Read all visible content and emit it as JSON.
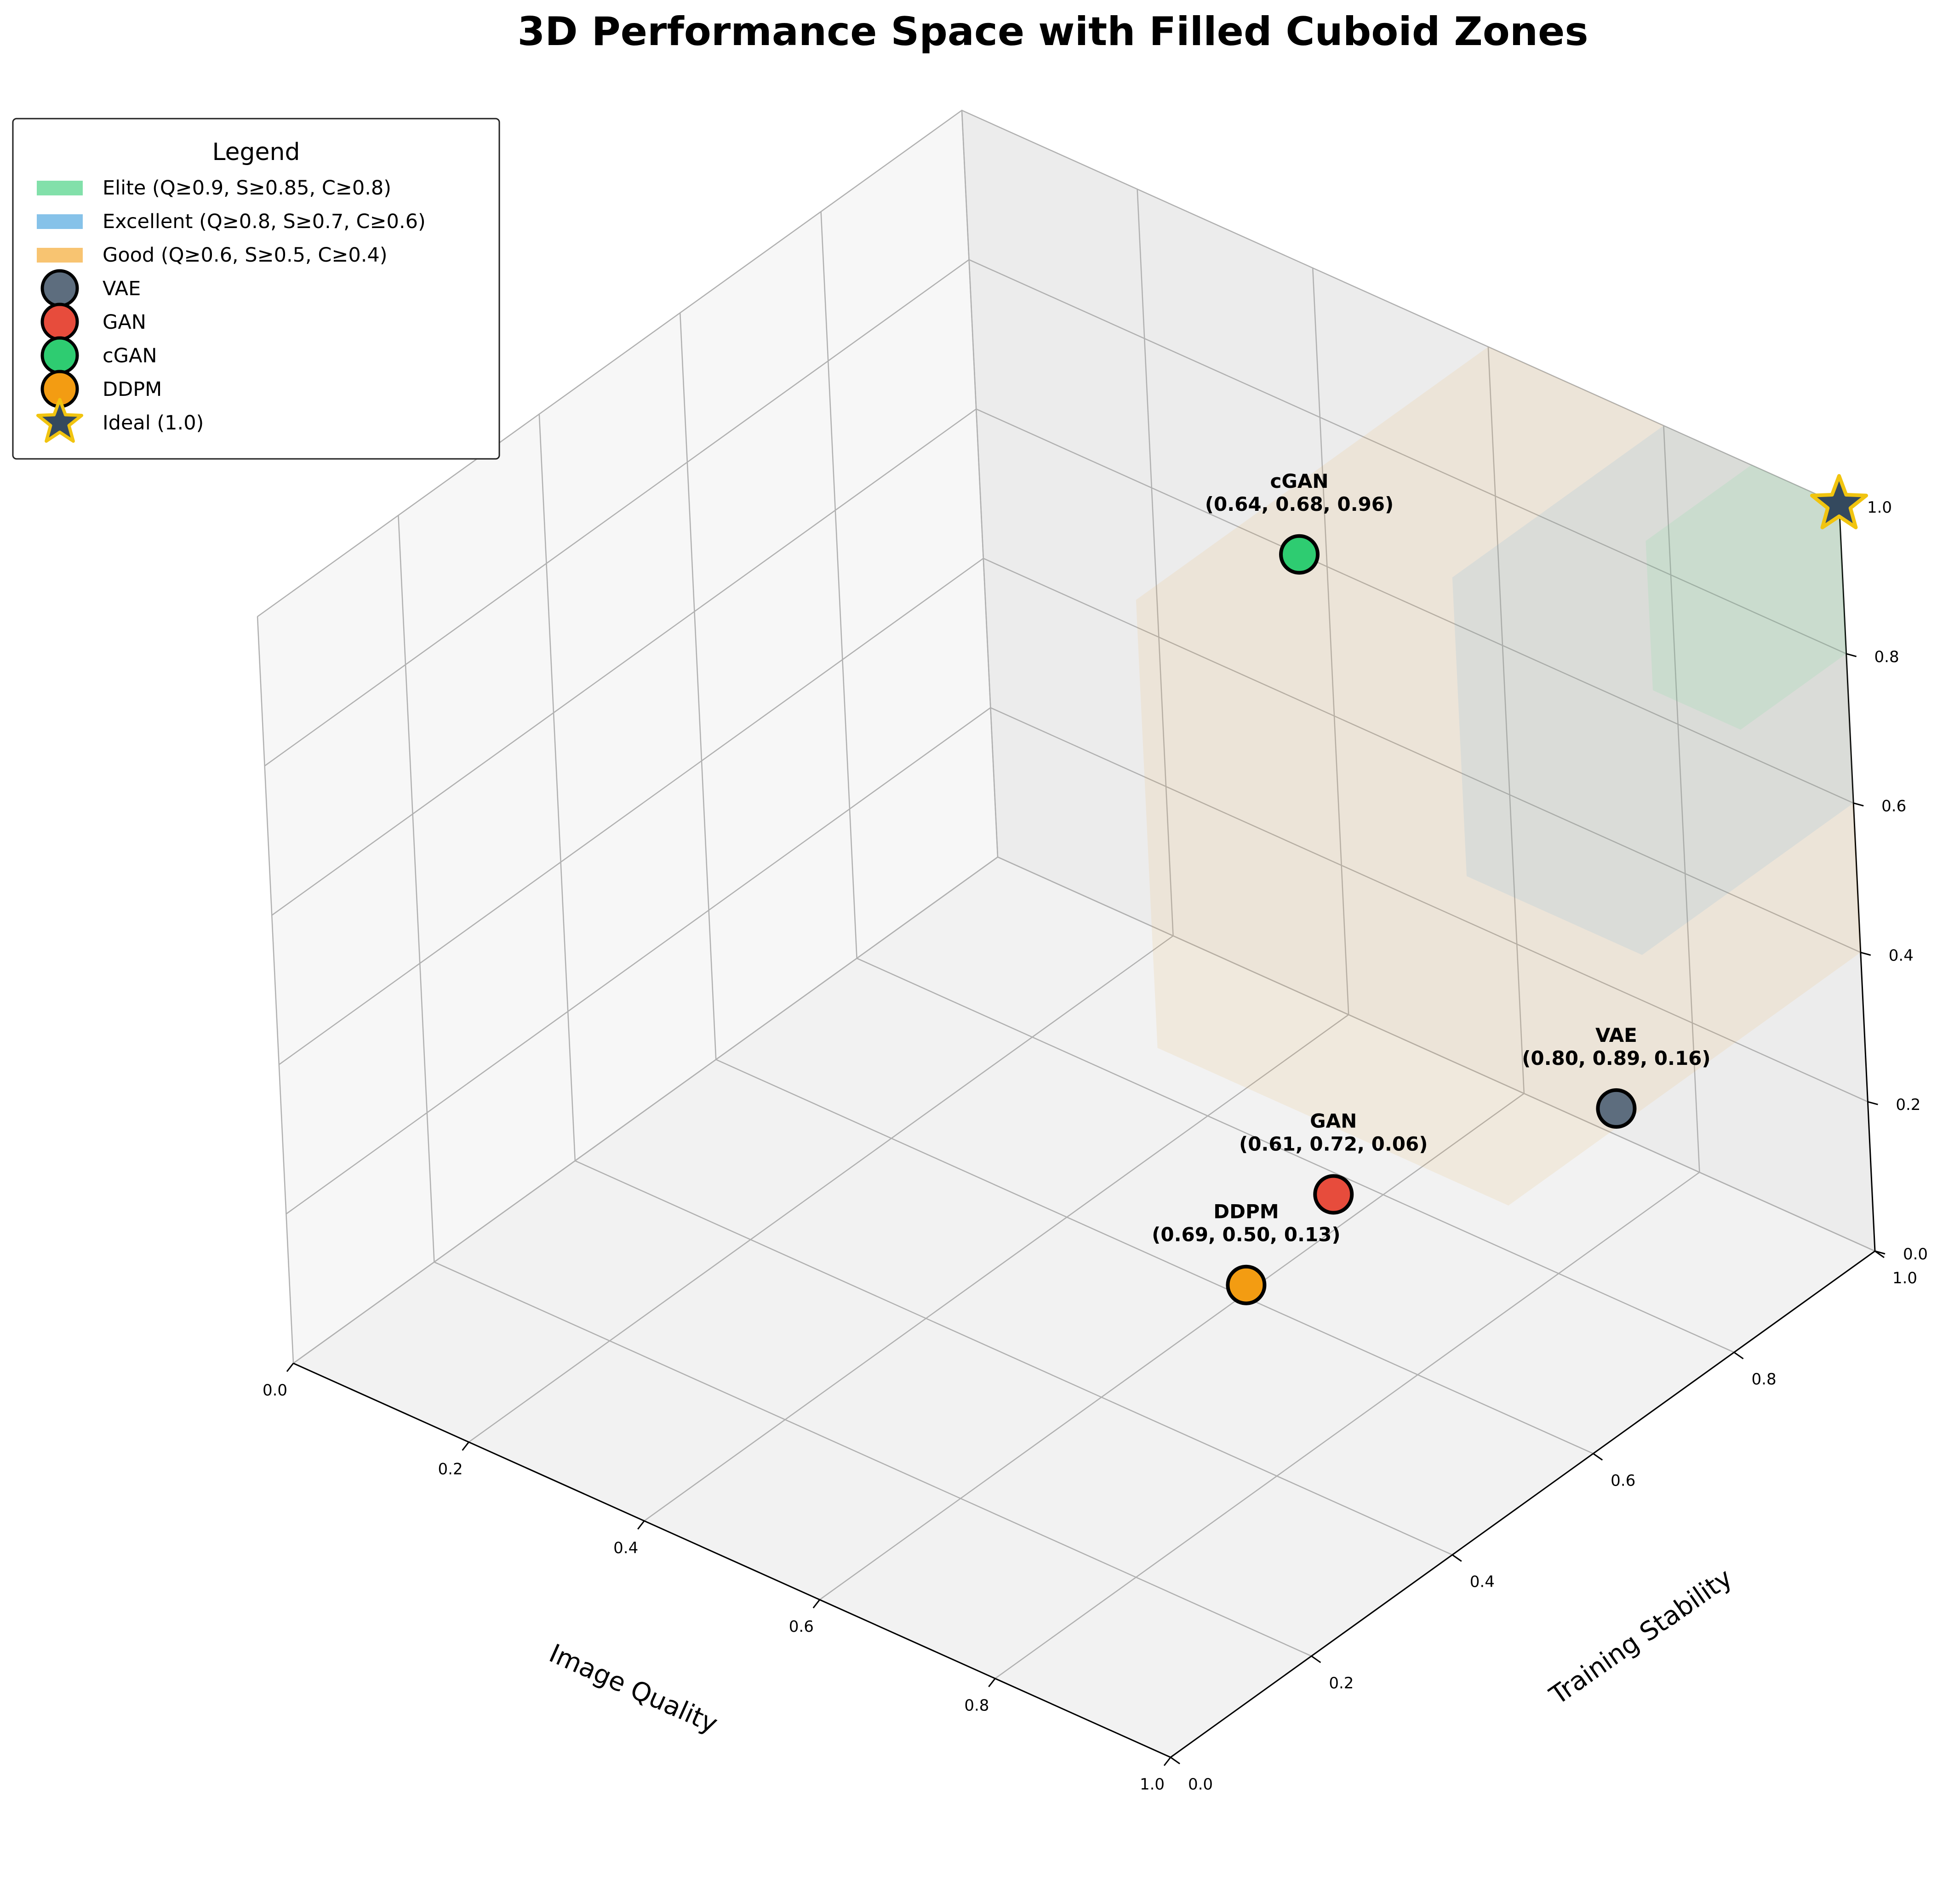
{
  "chart_data": {
    "type": "scatter",
    "title": "3D Performance Space with Filled Cuboid Zones",
    "xlabel": "Image Quality",
    "ylabel": "Training Stability",
    "zlabel": "",
    "xlim": [
      0,
      1
    ],
    "ylim": [
      0,
      1
    ],
    "zlim": [
      0,
      1
    ],
    "xticks": [
      "0.0",
      "0.2",
      "0.4",
      "0.6",
      "0.8",
      "1.0"
    ],
    "yticks": [
      "0.0",
      "0.2",
      "0.4",
      "0.6",
      "0.8",
      "1.0"
    ],
    "zticks": [
      "0.0",
      "0.2",
      "0.4",
      "0.6",
      "0.8",
      "1.0"
    ],
    "grid": true,
    "legend": {
      "title": "Legend",
      "placement": "top-left"
    },
    "zones": [
      {
        "name": "Good (Q≥0.6, S≥0.5, C≥0.4)",
        "min": [
          0.6,
          0.5,
          0.4
        ],
        "max": [
          1.0,
          1.0,
          1.0
        ],
        "color": "#f5b041"
      },
      {
        "name": "Excellent (Q≥0.8, S≥0.7, C≥0.6)",
        "min": [
          0.8,
          0.7,
          0.6
        ],
        "max": [
          1.0,
          1.0,
          1.0
        ],
        "color": "#5dade2"
      },
      {
        "name": "Elite (Q≥0.9, S≥0.85, C≥0.8)",
        "min": [
          0.9,
          0.85,
          0.8
        ],
        "max": [
          1.0,
          1.0,
          1.0
        ],
        "color": "#58d68d"
      }
    ],
    "series": [
      {
        "name": "VAE",
        "x": 0.8,
        "y": 0.89,
        "z": 0.16,
        "color": "#5d6d7e",
        "label": "VAE\n(0.80, 0.89, 0.16)"
      },
      {
        "name": "GAN",
        "x": 0.61,
        "y": 0.72,
        "z": 0.06,
        "color": "#e74c3c",
        "label": "GAN\n(0.61, 0.72, 0.06)"
      },
      {
        "name": "cGAN",
        "x": 0.64,
        "y": 0.68,
        "z": 0.96,
        "color": "#2ecc71",
        "label": "cGAN\n(0.64, 0.68, 0.96)"
      },
      {
        "name": "DDPM",
        "x": 0.69,
        "y": 0.5,
        "z": 0.13,
        "color": "#f39c12",
        "label": "DDPM\n(0.69, 0.50, 0.13)"
      }
    ],
    "ideal": {
      "name": "Ideal (1.0)",
      "x": 1.0,
      "y": 1.0,
      "z": 1.0,
      "color": "#34495e",
      "edge": "#f1c40f"
    }
  }
}
